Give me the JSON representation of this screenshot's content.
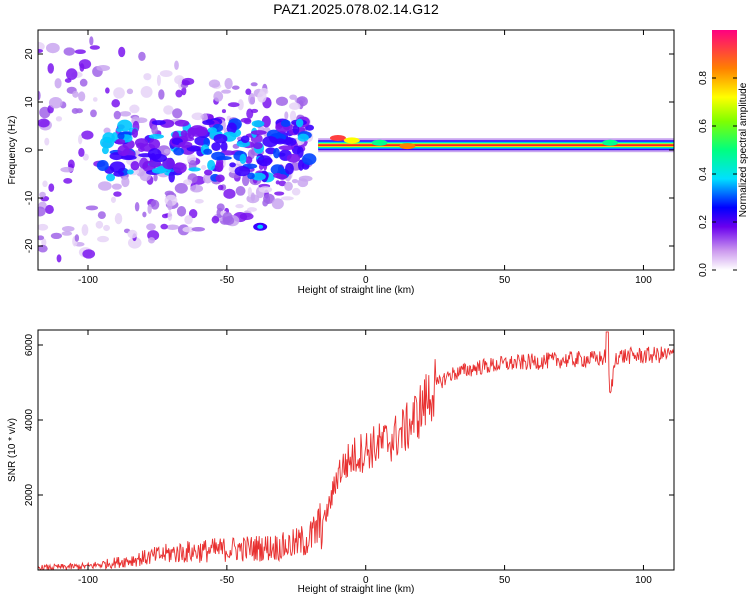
{
  "chart_data": [
    {
      "type": "heatmap",
      "title": "PAZ1.2025.078.02.14.G12",
      "xlabel": "Height of straight line (km)",
      "ylabel": "Frequency (Hz)",
      "xlim": [
        -118,
        111
      ],
      "ylim": [
        -25,
        25
      ],
      "xticks": [
        -100,
        -50,
        0,
        50,
        100
      ],
      "yticks": [
        -20,
        -10,
        0,
        10,
        20
      ],
      "colorbar": {
        "label": "Normalized spectral amplitude",
        "range": [
          0,
          1
        ],
        "ticks": [
          0.0,
          0.2,
          0.4,
          0.6,
          0.8
        ]
      },
      "regions": [
        {
          "name": "noisy",
          "x_range": [
            -118,
            -20
          ],
          "freq_spread_hz": [
            -25,
            25
          ]
        },
        {
          "name": "signal-band",
          "x_range": [
            -20,
            111
          ],
          "center_freq_hz": 1.0,
          "peak_amplitude": 1.0
        }
      ]
    },
    {
      "type": "line",
      "xlabel": "Height of straight line (km)",
      "ylabel": "SNR (10 * v/v)",
      "xlim": [
        -118,
        111
      ],
      "ylim": [
        0,
        6400
      ],
      "xticks": [
        -100,
        -50,
        0,
        50,
        100
      ],
      "yticks": [
        2000,
        4000,
        6000
      ],
      "color": "#e83030",
      "series": [
        {
          "name": "SNR",
          "x": [
            -118,
            -100,
            -90,
            -80,
            -70,
            -60,
            -50,
            -40,
            -30,
            -25,
            -20,
            -15,
            -12,
            -10,
            -5,
            0,
            5,
            10,
            15,
            20,
            25,
            30,
            40,
            50,
            60,
            70,
            80,
            85,
            87,
            88,
            90,
            100,
            111
          ],
          "values": [
            60,
            100,
            200,
            320,
            450,
            500,
            550,
            580,
            620,
            700,
            850,
            1300,
            2000,
            2600,
            3000,
            3200,
            3350,
            3500,
            3800,
            4300,
            4900,
            5200,
            5400,
            5500,
            5550,
            5600,
            5620,
            5640,
            5700,
            4600,
            5700,
            5720,
            5750
          ]
        }
      ]
    }
  ]
}
